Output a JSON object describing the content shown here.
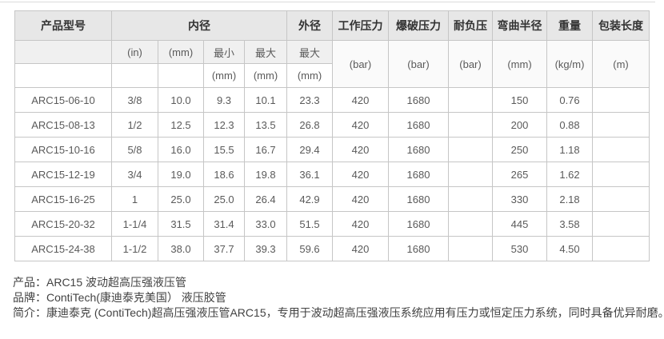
{
  "table": {
    "header": {
      "product_model": "产品型号",
      "inner_diameter": "内径",
      "outer_diameter": "外径",
      "working_pressure": "工作压力",
      "burst_pressure": "爆破压力",
      "vacuum_resistance": "耐负压",
      "bend_radius": "弯曲半径",
      "weight": "重量",
      "package_length": "包装长度",
      "sub_in": "(in)",
      "sub_mm": "(mm)",
      "sub_min": "最小",
      "sub_max": "最大",
      "sub_od_max": "最大",
      "unit_mm_min": "(mm)",
      "unit_mm_max": "(mm)",
      "unit_mm_od": "(mm)",
      "unit_bar_working": "(bar)",
      "unit_bar_burst": "(bar)",
      "unit_bar_vacuum": "(bar)",
      "unit_mm_bend": "(mm)",
      "unit_kg_m": "(kg/m)",
      "unit_m": "(m)"
    },
    "rows": [
      [
        "ARC15-06-10",
        "3/8",
        "10.0",
        "9.3",
        "10.1",
        "23.3",
        "420",
        "1680",
        "",
        "150",
        "0.76",
        ""
      ],
      [
        "ARC15-08-13",
        "1/2",
        "12.5",
        "12.3",
        "13.5",
        "26.8",
        "420",
        "1680",
        "",
        "200",
        "0.88",
        ""
      ],
      [
        "ARC15-10-16",
        "5/8",
        "16.0",
        "15.5",
        "16.7",
        "29.4",
        "420",
        "1680",
        "",
        "250",
        "1.18",
        ""
      ],
      [
        "ARC15-12-19",
        "3/4",
        "19.0",
        "18.6",
        "19.8",
        "36.1",
        "420",
        "1680",
        "",
        "265",
        "1.62",
        ""
      ],
      [
        "ARC15-16-25",
        "1",
        "25.0",
        "25.0",
        "26.4",
        "42.9",
        "420",
        "1680",
        "",
        "330",
        "2.18",
        ""
      ],
      [
        "ARC15-20-32",
        "1-1/4",
        "31.5",
        "31.4",
        "33.0",
        "51.5",
        "420",
        "1680",
        "",
        "445",
        "3.58",
        ""
      ],
      [
        "ARC15-24-38",
        "1-1/2",
        "38.0",
        "37.7",
        "39.3",
        "59.6",
        "420",
        "1680",
        "",
        "530",
        "4.50",
        ""
      ]
    ]
  },
  "footer": {
    "product_line": "产品：ARC15 波动超高压强液压管",
    "brand_line": "品牌：ContiTech(康迪泰克美国） 液压胶管",
    "intro_line": "简介：康迪泰克 (ContiTech)超高压强液压管ARC15，专用于波动超高压强液压系统应用有压力或恒定压力系统，同时具备优异耐磨。"
  }
}
